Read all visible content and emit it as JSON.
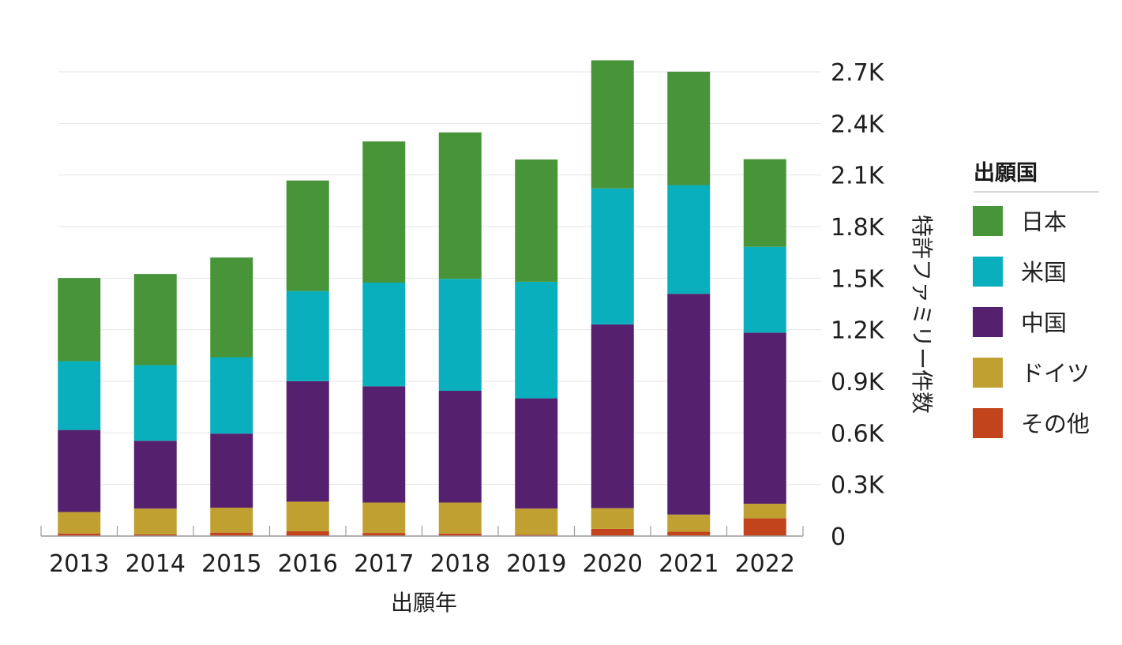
{
  "chart_data": {
    "type": "bar",
    "stacked": true,
    "categories": [
      "2013",
      "2014",
      "2015",
      "2016",
      "2017",
      "2018",
      "2019",
      "2020",
      "2021",
      "2022"
    ],
    "series": [
      {
        "name": "その他",
        "color": "#c1441c",
        "values": [
          15,
          10,
          20,
          28,
          18,
          15,
          8,
          42,
          25,
          103
        ]
      },
      {
        "name": "ドイツ",
        "color": "#c0a030",
        "values": [
          125,
          150,
          145,
          172,
          177,
          180,
          152,
          120,
          100,
          85
        ]
      },
      {
        "name": "中国",
        "color": "#55216f",
        "values": [
          477,
          394,
          431,
          701,
          676,
          650,
          641,
          1069,
          1284,
          995
        ]
      },
      {
        "name": "米国",
        "color": "#0aafbe",
        "values": [
          400,
          440,
          444,
          524,
          603,
          651,
          678,
          791,
          632,
          499
        ]
      },
      {
        "name": "日本",
        "color": "#479538",
        "values": [
          484,
          530,
          580,
          643,
          821,
          852,
          711,
          745,
          660,
          510
        ]
      }
    ],
    "y_ticks": [
      0,
      300,
      600,
      900,
      1200,
      1500,
      1800,
      2100,
      2400,
      2700
    ],
    "y_tick_labels": [
      "0",
      "0.3K",
      "0.6K",
      "0.9K",
      "1.2K",
      "1.5K",
      "1.8K",
      "2.1K",
      "2.4K",
      "2.7K"
    ],
    "ylim": [
      0,
      2700
    ],
    "xlabel": "出願年",
    "ylabel": "特許ファミリー件数",
    "y_axis_side": "right",
    "grid": true,
    "legend": {
      "title": "出願国",
      "placement": "right",
      "order": [
        "日本",
        "米国",
        "中国",
        "ドイツ",
        "その他"
      ]
    }
  }
}
